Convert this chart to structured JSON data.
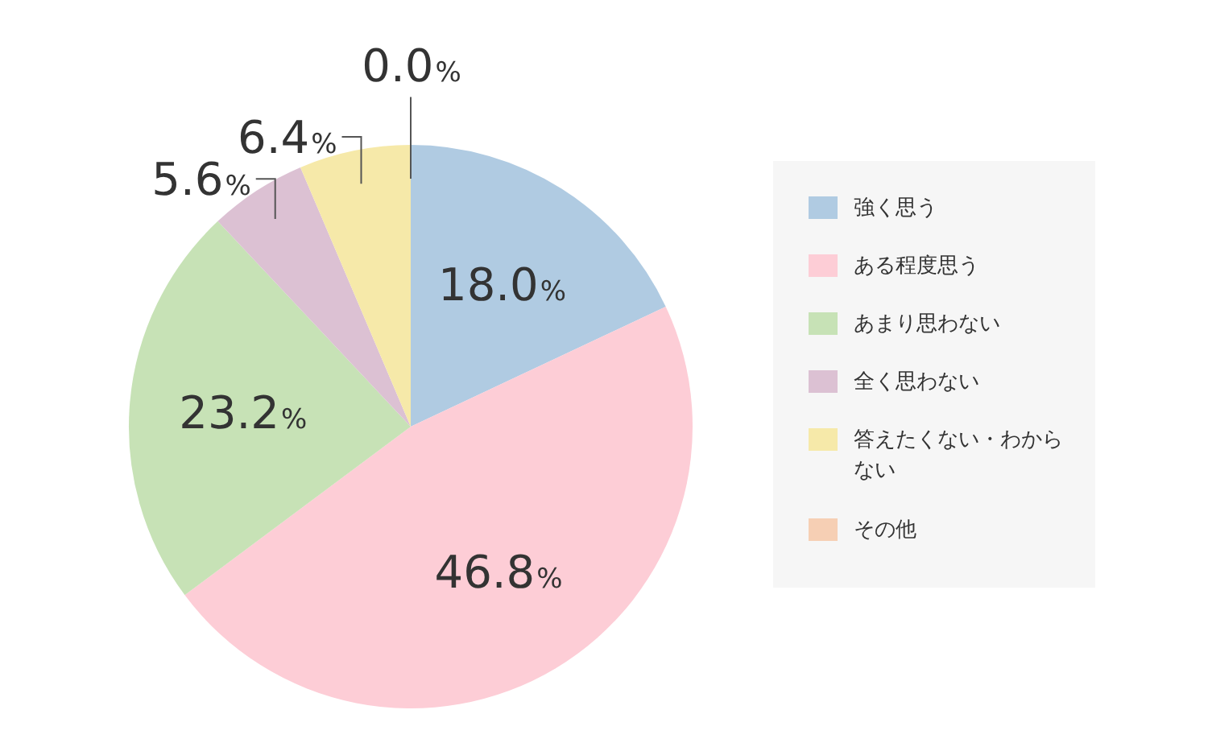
{
  "chart_data": {
    "type": "pie",
    "categories": [
      "強く思う",
      "ある程度思う",
      "あまり思わない",
      "全く思わない",
      "答えたくない・わからない",
      "その他"
    ],
    "values": [
      18.0,
      46.8,
      23.2,
      5.6,
      6.4,
      0.0
    ],
    "colors": [
      "#b0cbe2",
      "#fdcdd6",
      "#c7e2b6",
      "#dcc1d3",
      "#f6e9a9",
      "#f6cfb4"
    ],
    "value_labels": [
      "18.0%",
      "46.8%",
      "23.2%",
      "5.6%",
      "6.4%",
      "0.0%"
    ],
    "legend": "right"
  }
}
